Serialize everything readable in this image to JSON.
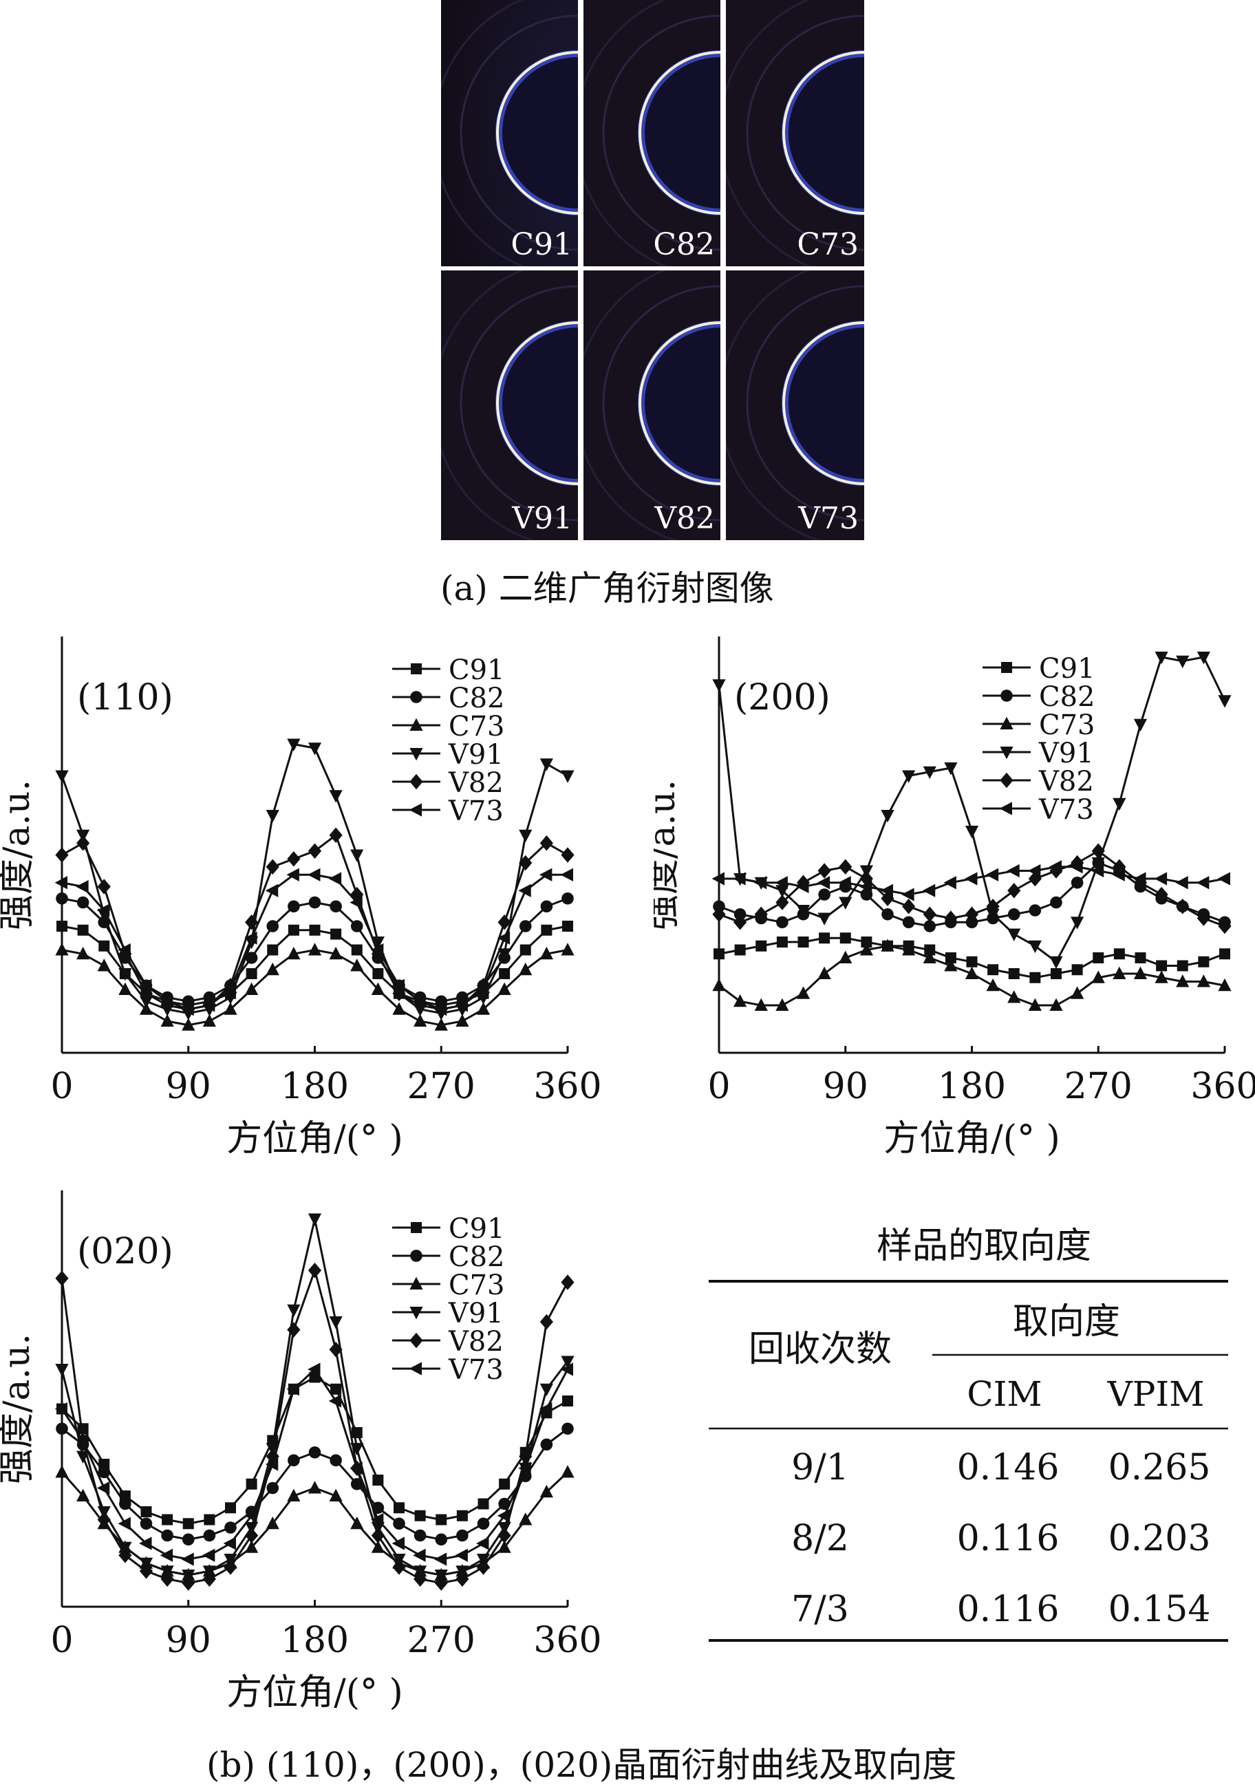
{
  "panel_a": {
    "caption": "(a) 二维广角衍射图像",
    "images": [
      {
        "label": "C91"
      },
      {
        "label": "C82"
      },
      {
        "label": "C73"
      },
      {
        "label": "V91"
      },
      {
        "label": "V82"
      },
      {
        "label": "V73"
      }
    ]
  },
  "panel_b": {
    "caption": "(b) (110)，(200)，(020)晶面衍射曲线及取向度"
  },
  "chart_data": [
    {
      "type": "line",
      "title": "(110)",
      "xlabel": "方位角/(° )",
      "ylabel": "强度/a.u.",
      "xlim": [
        0,
        360
      ],
      "ylim": [
        0,
        1
      ],
      "xticks": [
        0,
        90,
        180,
        270,
        360
      ],
      "legend_position": "top-right",
      "x": [
        0,
        15,
        30,
        45,
        60,
        75,
        90,
        105,
        120,
        135,
        150,
        165,
        180,
        195,
        210,
        225,
        240,
        255,
        270,
        285,
        300,
        315,
        330,
        345,
        360
      ],
      "series": [
        {
          "name": "C91",
          "marker": "square",
          "values": [
            0.32,
            0.31,
            0.27,
            0.2,
            0.15,
            0.13,
            0.12,
            0.13,
            0.15,
            0.2,
            0.26,
            0.31,
            0.31,
            0.3,
            0.26,
            0.2,
            0.15,
            0.13,
            0.12,
            0.13,
            0.15,
            0.2,
            0.26,
            0.31,
            0.32
          ]
        },
        {
          "name": "C82",
          "marker": "circle",
          "values": [
            0.39,
            0.38,
            0.33,
            0.24,
            0.17,
            0.14,
            0.13,
            0.14,
            0.17,
            0.24,
            0.32,
            0.37,
            0.38,
            0.37,
            0.32,
            0.24,
            0.17,
            0.14,
            0.13,
            0.14,
            0.17,
            0.24,
            0.32,
            0.37,
            0.39
          ]
        },
        {
          "name": "C73",
          "marker": "triangle-up",
          "values": [
            0.26,
            0.25,
            0.22,
            0.16,
            0.11,
            0.08,
            0.07,
            0.08,
            0.11,
            0.16,
            0.21,
            0.25,
            0.26,
            0.25,
            0.22,
            0.16,
            0.11,
            0.08,
            0.07,
            0.08,
            0.11,
            0.16,
            0.21,
            0.25,
            0.26
          ]
        },
        {
          "name": "V91",
          "marker": "triangle-down",
          "values": [
            0.7,
            0.55,
            0.35,
            0.2,
            0.13,
            0.11,
            0.1,
            0.11,
            0.14,
            0.28,
            0.6,
            0.78,
            0.77,
            0.65,
            0.5,
            0.28,
            0.15,
            0.11,
            0.1,
            0.11,
            0.14,
            0.25,
            0.55,
            0.73,
            0.7
          ]
        },
        {
          "name": "V82",
          "marker": "diamond",
          "values": [
            0.5,
            0.53,
            0.42,
            0.25,
            0.15,
            0.12,
            0.11,
            0.12,
            0.17,
            0.33,
            0.47,
            0.49,
            0.51,
            0.55,
            0.4,
            0.25,
            0.15,
            0.12,
            0.11,
            0.12,
            0.17,
            0.33,
            0.48,
            0.53,
            0.5
          ]
        },
        {
          "name": "V73",
          "marker": "triangle-left",
          "values": [
            0.43,
            0.42,
            0.36,
            0.26,
            0.17,
            0.13,
            0.11,
            0.12,
            0.16,
            0.29,
            0.41,
            0.45,
            0.45,
            0.44,
            0.38,
            0.26,
            0.17,
            0.13,
            0.11,
            0.12,
            0.16,
            0.29,
            0.41,
            0.45,
            0.45
          ]
        }
      ]
    },
    {
      "type": "line",
      "title": "(200)",
      "xlabel": "方位角/(° )",
      "ylabel": "强度/a.u.",
      "xlim": [
        0,
        360
      ],
      "ylim": [
        0,
        1
      ],
      "xticks": [
        0,
        90,
        180,
        270,
        360
      ],
      "legend_position": "top-right",
      "x": [
        0,
        15,
        30,
        45,
        60,
        75,
        90,
        105,
        120,
        135,
        150,
        165,
        180,
        195,
        210,
        225,
        240,
        255,
        270,
        285,
        300,
        315,
        330,
        345,
        360
      ],
      "series": [
        {
          "name": "C91",
          "marker": "square",
          "values": [
            0.25,
            0.26,
            0.27,
            0.28,
            0.28,
            0.29,
            0.29,
            0.28,
            0.27,
            0.27,
            0.26,
            0.24,
            0.23,
            0.21,
            0.2,
            0.19,
            0.2,
            0.21,
            0.24,
            0.25,
            0.24,
            0.22,
            0.22,
            0.23,
            0.25
          ]
        },
        {
          "name": "C82",
          "marker": "circle",
          "values": [
            0.37,
            0.35,
            0.34,
            0.33,
            0.35,
            0.4,
            0.42,
            0.4,
            0.35,
            0.33,
            0.32,
            0.33,
            0.33,
            0.34,
            0.35,
            0.36,
            0.38,
            0.43,
            0.48,
            0.46,
            0.42,
            0.39,
            0.37,
            0.35,
            0.33
          ]
        },
        {
          "name": "C73",
          "marker": "triangle-up",
          "values": [
            0.17,
            0.13,
            0.12,
            0.12,
            0.15,
            0.2,
            0.24,
            0.26,
            0.27,
            0.26,
            0.24,
            0.22,
            0.2,
            0.17,
            0.14,
            0.12,
            0.12,
            0.15,
            0.19,
            0.2,
            0.2,
            0.19,
            0.18,
            0.18,
            0.17
          ]
        },
        {
          "name": "V91",
          "marker": "triangle-down",
          "values": [
            0.93,
            0.44,
            0.43,
            0.41,
            0.36,
            0.34,
            0.38,
            0.46,
            0.6,
            0.7,
            0.71,
            0.72,
            0.56,
            0.35,
            0.3,
            0.27,
            0.23,
            0.33,
            0.48,
            0.63,
            0.83,
            1.0,
            0.99,
            1.0,
            0.89
          ]
        },
        {
          "name": "V82",
          "marker": "diamond",
          "values": [
            0.35,
            0.33,
            0.35,
            0.38,
            0.43,
            0.46,
            0.47,
            0.44,
            0.39,
            0.37,
            0.35,
            0.34,
            0.35,
            0.37,
            0.41,
            0.44,
            0.46,
            0.48,
            0.51,
            0.47,
            0.43,
            0.4,
            0.37,
            0.34,
            0.32
          ]
        },
        {
          "name": "V73",
          "marker": "triangle-left",
          "values": [
            0.44,
            0.44,
            0.43,
            0.43,
            0.42,
            0.43,
            0.43,
            0.42,
            0.41,
            0.4,
            0.41,
            0.43,
            0.44,
            0.45,
            0.46,
            0.46,
            0.47,
            0.47,
            0.46,
            0.45,
            0.44,
            0.44,
            0.43,
            0.43,
            0.44
          ]
        }
      ]
    },
    {
      "type": "line",
      "title": "(020)",
      "xlabel": "方位角/(° )",
      "ylabel": "强度/a.u.",
      "xlim": [
        0,
        360
      ],
      "ylim": [
        0,
        1
      ],
      "xticks": [
        0,
        90,
        180,
        270,
        360
      ],
      "legend_position": "top-right",
      "x": [
        0,
        15,
        30,
        45,
        60,
        75,
        90,
        105,
        120,
        135,
        150,
        165,
        180,
        195,
        210,
        225,
        240,
        255,
        270,
        285,
        300,
        315,
        330,
        345,
        360
      ],
      "series": [
        {
          "name": "C91",
          "marker": "square",
          "values": [
            0.5,
            0.45,
            0.36,
            0.28,
            0.24,
            0.22,
            0.21,
            0.22,
            0.25,
            0.31,
            0.42,
            0.55,
            0.58,
            0.55,
            0.44,
            0.32,
            0.25,
            0.23,
            0.22,
            0.23,
            0.26,
            0.31,
            0.39,
            0.49,
            0.52
          ]
        },
        {
          "name": "C82",
          "marker": "circle",
          "values": [
            0.45,
            0.41,
            0.34,
            0.26,
            0.21,
            0.18,
            0.17,
            0.18,
            0.2,
            0.24,
            0.3,
            0.37,
            0.39,
            0.37,
            0.31,
            0.25,
            0.21,
            0.18,
            0.17,
            0.18,
            0.21,
            0.26,
            0.33,
            0.41,
            0.45
          ]
        },
        {
          "name": "C73",
          "marker": "triangle-up",
          "values": [
            0.34,
            0.28,
            0.21,
            0.15,
            0.11,
            0.09,
            0.08,
            0.09,
            0.11,
            0.15,
            0.21,
            0.28,
            0.3,
            0.28,
            0.21,
            0.15,
            0.11,
            0.09,
            0.08,
            0.09,
            0.11,
            0.15,
            0.22,
            0.29,
            0.34
          ]
        },
        {
          "name": "V91",
          "marker": "triangle-down",
          "values": [
            0.6,
            0.38,
            0.24,
            0.15,
            0.11,
            0.09,
            0.08,
            0.09,
            0.12,
            0.2,
            0.4,
            0.75,
            0.98,
            0.72,
            0.4,
            0.2,
            0.12,
            0.09,
            0.08,
            0.09,
            0.12,
            0.2,
            0.35,
            0.55,
            0.62
          ]
        },
        {
          "name": "V82",
          "marker": "diamond",
          "values": [
            0.83,
            0.42,
            0.22,
            0.13,
            0.09,
            0.07,
            0.06,
            0.07,
            0.1,
            0.18,
            0.38,
            0.7,
            0.85,
            0.65,
            0.35,
            0.18,
            0.1,
            0.07,
            0.06,
            0.07,
            0.1,
            0.18,
            0.38,
            0.72,
            0.82
          ]
        },
        {
          "name": "V73",
          "marker": "triangle-left",
          "values": [
            0.5,
            0.42,
            0.3,
            0.21,
            0.16,
            0.13,
            0.12,
            0.13,
            0.16,
            0.23,
            0.36,
            0.55,
            0.6,
            0.52,
            0.35,
            0.22,
            0.16,
            0.13,
            0.12,
            0.13,
            0.16,
            0.23,
            0.35,
            0.5,
            0.6
          ]
        }
      ]
    },
    {
      "type": "table",
      "title": "样品的取向度",
      "headers": {
        "row_header": "回收次数",
        "group": "取向度",
        "cols": [
          "CIM",
          "VPIM"
        ]
      },
      "rows": [
        {
          "label": "9/1",
          "values": [
            "0.146",
            "0.265"
          ]
        },
        {
          "label": "8/2",
          "values": [
            "0.116",
            "0.203"
          ]
        },
        {
          "label": "7/3",
          "values": [
            "0.116",
            "0.154"
          ]
        }
      ]
    }
  ]
}
